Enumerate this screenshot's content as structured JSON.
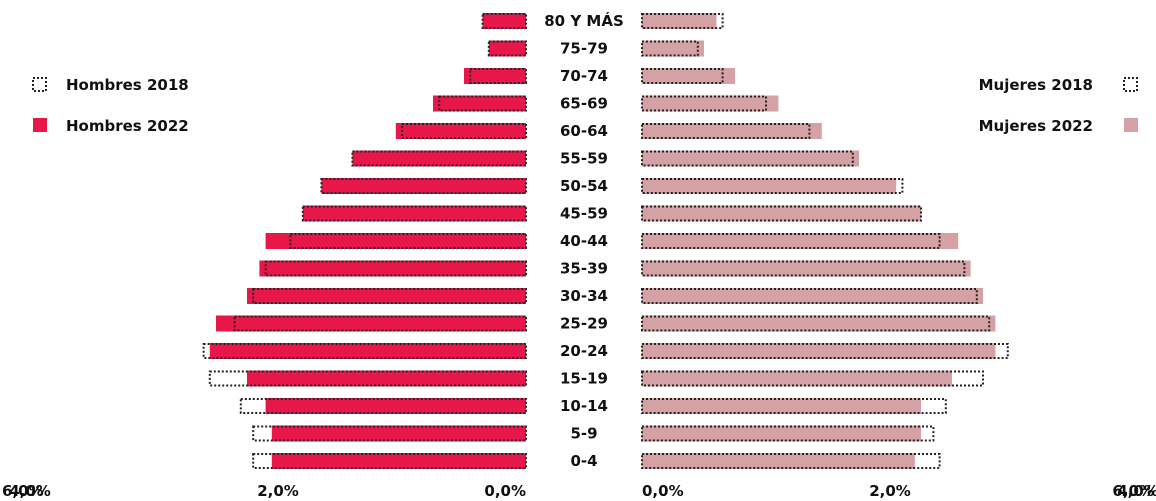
{
  "chart_data": {
    "type": "bar",
    "orientation": "horizontal",
    "layout": "population-pyramid",
    "title": "",
    "xlabel": "",
    "ylabel": "",
    "xlim": [
      0,
      6
    ],
    "x_ticks_left": [
      "6,0%",
      "4,0%",
      "2,0%",
      "0,0%"
    ],
    "x_ticks_right": [
      "0,0%",
      "2,0%",
      "4,0%",
      "6,0%"
    ],
    "categories": [
      "80 Y MÁS",
      "75-79",
      "70-74",
      "65-69",
      "60-64",
      "55-59",
      "50-54",
      "45-59",
      "40-44",
      "35-39",
      "30-34",
      "25-29",
      "20-24",
      "15-19",
      "10-14",
      "5-9",
      "0-4"
    ],
    "series": [
      {
        "name": "Hombres 2018",
        "side": "left",
        "style": "dotted-outline",
        "values": [
          0.35,
          0.3,
          0.45,
          0.7,
          1.0,
          1.4,
          1.65,
          1.8,
          1.9,
          2.1,
          2.2,
          2.35,
          2.6,
          2.55,
          2.3,
          2.2,
          2.2
        ]
      },
      {
        "name": "Hombres 2022",
        "side": "left",
        "style": "filled",
        "values": [
          0.35,
          0.3,
          0.5,
          0.75,
          1.05,
          1.4,
          1.65,
          1.8,
          2.1,
          2.15,
          2.25,
          2.5,
          2.55,
          2.25,
          2.1,
          2.05,
          2.05
        ]
      },
      {
        "name": "Mujeres 2018",
        "side": "right",
        "style": "dotted-outline",
        "values": [
          0.65,
          0.45,
          0.65,
          1.0,
          1.35,
          1.7,
          2.1,
          2.25,
          2.4,
          2.6,
          2.7,
          2.8,
          2.95,
          2.75,
          2.45,
          2.35,
          2.4
        ]
      },
      {
        "name": "Mujeres 2022",
        "side": "right",
        "style": "filled",
        "values": [
          0.6,
          0.5,
          0.75,
          1.1,
          1.45,
          1.75,
          2.05,
          2.25,
          2.55,
          2.65,
          2.75,
          2.85,
          2.85,
          2.5,
          2.25,
          2.25,
          2.2
        ]
      }
    ],
    "legend": {
      "left": [
        "Hombres 2018",
        "Hombres 2022"
      ],
      "right": [
        "Mujeres 2018",
        "Mujeres 2022"
      ]
    },
    "grid": false
  },
  "colors": {
    "hombres": "#e8174a",
    "mujeres": "#d4a1a5",
    "outline": "#222222",
    "text": "#111111"
  }
}
